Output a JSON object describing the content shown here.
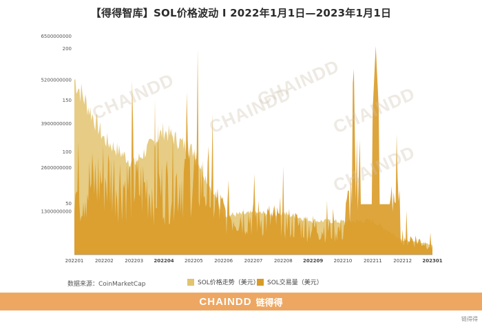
{
  "header": {
    "title": "【得得智库】SOL价格波动 I 2022年1月1日—2023年1月1日"
  },
  "source": "数据来源：CoinMarketCap",
  "footer": {
    "brand": "CHAINDD",
    "brand_cn": "链得得",
    "corner_text": "链得得"
  },
  "watermark_text": "CHAINDD",
  "colors": {
    "price": "#e2c36f",
    "volume": "#d99b27",
    "footer": "#eda762"
  },
  "chart_data": {
    "type": "area",
    "title": "【得得智库】SOL价格波动 I 2022年1月1日—2023年1月1日",
    "x_ticks": [
      "202201",
      "202202",
      "202203",
      "202204",
      "202205",
      "202206",
      "202207",
      "202208",
      "202209",
      "202210",
      "202211",
      "202212",
      "202301"
    ],
    "y_left_ticks": [
      "6500000000",
      "5200000000",
      "3900000000",
      "2600000000",
      "1300000000"
    ],
    "y_left_values": [
      6500000000,
      5200000000,
      3900000000,
      2600000000,
      1300000000
    ],
    "y_right_ticks": [
      "200",
      "150",
      "100",
      "50"
    ],
    "y_right_values": [
      200,
      150,
      100,
      50
    ],
    "ylim_volume": [
      0,
      6500000000
    ],
    "ylim_price": [
      0,
      212
    ],
    "legend_position": "bottom",
    "series": [
      {
        "name": "SOL价格走势（美元）",
        "axis": "right",
        "x": [
          "202201",
          "202202",
          "202203",
          "202204",
          "202205",
          "202206",
          "202207",
          "202208",
          "202209",
          "202210",
          "202211",
          "202212",
          "202301"
        ],
        "values": [
          170,
          112,
          88,
          120,
          100,
          38,
          40,
          40,
          33,
          32,
          33,
          14,
          10
        ]
      },
      {
        "name": "SOL交易量（美元）",
        "axis": "left",
        "x": [
          "202201",
          "202202",
          "202203",
          "202204",
          "202205",
          "202206",
          "202207",
          "202208",
          "202209",
          "202210",
          "202211",
          "202212",
          "202301"
        ],
        "values": [
          2200000000,
          2900000000,
          2500000000,
          2400000000,
          3100000000,
          1500000000,
          1400000000,
          1200000000,
          1000000000,
          900000000,
          6200000000,
          700000000,
          350000000
        ]
      }
    ]
  }
}
